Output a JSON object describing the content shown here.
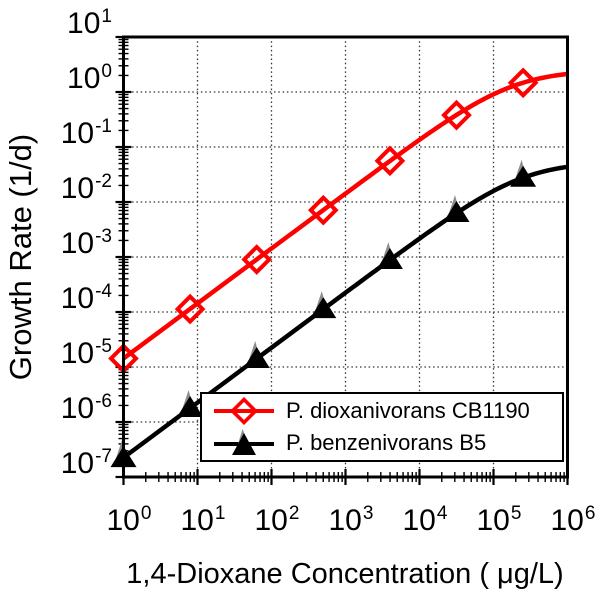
{
  "figure": {
    "x_title": "1,4-Dioxane Concentration ( μg/L)",
    "y_title": "Growth Rate (1/d)",
    "background": "#ffffff"
  },
  "chart_data": {
    "type": "line",
    "x_axis": {
      "label": "1,4-Dioxane Concentration ( μg/L)",
      "scale": "log",
      "range": [
        1,
        1000000
      ],
      "tick_exponents": [
        0,
        1,
        2,
        3,
        4,
        5,
        6
      ]
    },
    "y_axis": {
      "label": "Growth Rate (1/d)",
      "scale": "log",
      "range": [
        1e-07,
        10
      ],
      "tick_exponents": [
        1,
        0,
        -1,
        -2,
        -3,
        -4,
        -5,
        -6,
        -7
      ]
    },
    "grid": {
      "style": "dotted",
      "color": "#333333",
      "on": true
    },
    "legend_position": "lower right inside",
    "series": [
      {
        "name": "P. dioxanivorans CB1190",
        "color": "#ff0000",
        "marker": "open-diamond",
        "model": "monod",
        "mu_max": 2.5,
        "Ks": 175000,
        "points": [
          [
            1,
            1.43e-05
          ],
          [
            7.94,
            0.000113
          ],
          [
            63.1,
            0.0009
          ],
          [
            501,
            0.0071
          ],
          [
            3981,
            0.056
          ],
          [
            31623,
            0.38
          ],
          [
            251189,
            1.47
          ]
        ]
      },
      {
        "name": "P. benzenivorans B5",
        "color": "#000000",
        "marker": "filled-triangle",
        "marker_accent": "#8c8c8c",
        "model": "monod",
        "mu_max": 0.054,
        "Ks": 240000,
        "points": [
          [
            1,
            2.2e-07
          ],
          [
            7.94,
            1.8e-06
          ],
          [
            63.1,
            1.4e-05
          ],
          [
            501,
            0.000113
          ],
          [
            3981,
            0.00088
          ],
          [
            31623,
            0.0063
          ],
          [
            251189,
            0.0276
          ]
        ]
      }
    ]
  }
}
